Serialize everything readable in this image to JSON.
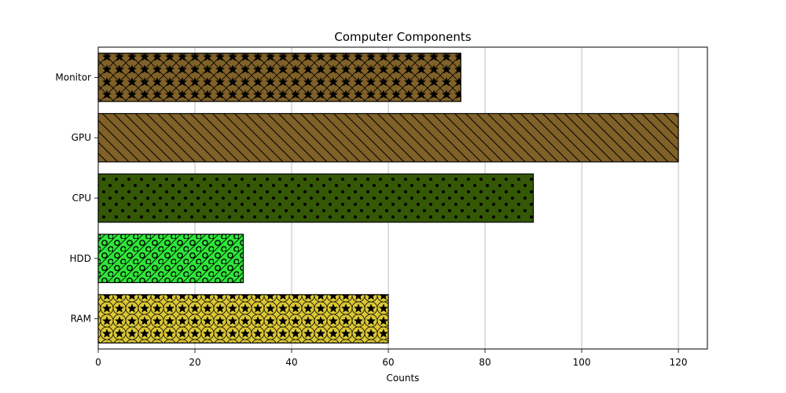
{
  "chart_data": {
    "type": "bar",
    "orientation": "horizontal",
    "title": "Computer Components",
    "xlabel": "Counts",
    "ylabel": "",
    "xlim": [
      0,
      126
    ],
    "xticks": [
      0,
      20,
      40,
      60,
      80,
      100,
      120
    ],
    "grid": "x-axis vertical lines",
    "categories": [
      "RAM",
      "HDD",
      "CPU",
      "GPU",
      "Monitor"
    ],
    "values": [
      60,
      30,
      90,
      120,
      75
    ],
    "colors": [
      "#dcc835",
      "#2ee638",
      "#345805",
      "#806128",
      "#806128"
    ],
    "patterns": [
      "stars-and-circles",
      "slash-and-circles",
      "dots",
      "backslash",
      "stars-and-crosshatch"
    ]
  }
}
